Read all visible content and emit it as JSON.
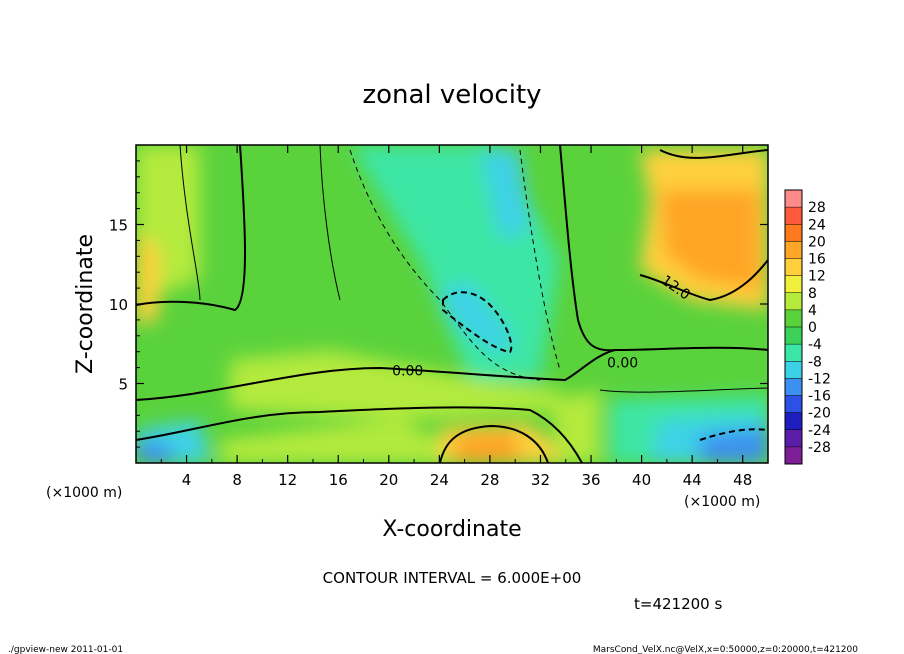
{
  "chart_data": {
    "type": "heatmap",
    "title": "zonal velocity",
    "xlabel": "X-coordinate",
    "ylabel": "Z-coordinate",
    "x_unit_label": "(×1000 m)",
    "y_unit_label": "(×1000 m)",
    "xlim": [
      0,
      50
    ],
    "ylim": [
      0,
      20
    ],
    "x_ticks": [
      4,
      8,
      12,
      16,
      20,
      24,
      28,
      32,
      36,
      40,
      44,
      48
    ],
    "y_ticks": [
      5,
      10,
      15
    ],
    "contour_interval_text": "CONTOUR INTERVAL = 6.000E+00",
    "contour_labels": [
      {
        "text": "0.00",
        "x": 21.5,
        "z": 5.5
      },
      {
        "text": "0.00",
        "x": 38.5,
        "z": 6.0
      },
      {
        "text": "12.0",
        "x": 42.5,
        "z": 10.8
      }
    ],
    "colorbar": {
      "levels": [
        28,
        24,
        20,
        16,
        12,
        8,
        4,
        0,
        -4,
        -8,
        -12,
        -16,
        -20,
        -24,
        -28
      ],
      "colors": [
        "#ff8a8a",
        "#ff5a3c",
        "#ff7a1e",
        "#ffa528",
        "#ffd03c",
        "#f0ef3c",
        "#b4ea3c",
        "#5ad23c",
        "#3cd25a",
        "#3ce6a5",
        "#3cd2e6",
        "#3c91f0",
        "#2d50e6",
        "#1e1ebe",
        "#5a1eaa",
        "#7d1e96"
      ]
    },
    "time_label": "t=421200 s",
    "grid": false
  },
  "footer": {
    "left": "./gpview-new  2011-01-01",
    "right": "MarsCond_VelX.nc@VelX,x=0:50000,z=0:20000,t=421200"
  }
}
